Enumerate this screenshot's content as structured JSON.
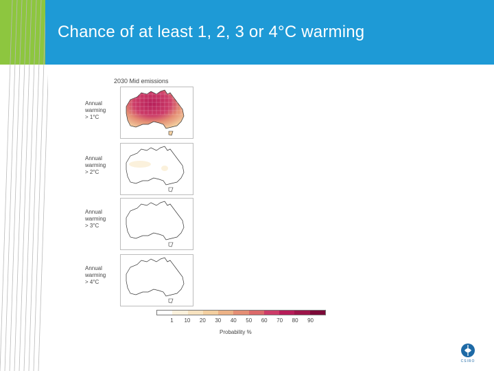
{
  "slide": {
    "title": "Chance of at least 1, 2, 3 or 4°C warming"
  },
  "figure": {
    "title": "2030 Mid emissions",
    "panels": [
      {
        "label": "Annual\nwarming\n> 1°C"
      },
      {
        "label": "Annual\nwarming\n> 2°C"
      },
      {
        "label": "Annual\nwarming\n> 3°C"
      },
      {
        "label": "Annual\nwarming\n> 4°C"
      }
    ],
    "legend": {
      "title": "Probability %",
      "ticks": [
        "1",
        "10",
        "20",
        "30",
        "40",
        "50",
        "60",
        "70",
        "80",
        "90"
      ],
      "colors": [
        "#ffffff",
        "#fbf1dc",
        "#f7e2bf",
        "#f3cfa0",
        "#ecb286",
        "#e48e74",
        "#db6a6a",
        "#cc3c68",
        "#b61d59",
        "#9c1549",
        "#7c0a38"
      ]
    }
  },
  "colors": {
    "title_bar": "#1e9ad6",
    "stripe_green": "#8dc63f"
  },
  "logo": {
    "text": "CSIRO",
    "icon": "csiro-logo-icon"
  }
}
